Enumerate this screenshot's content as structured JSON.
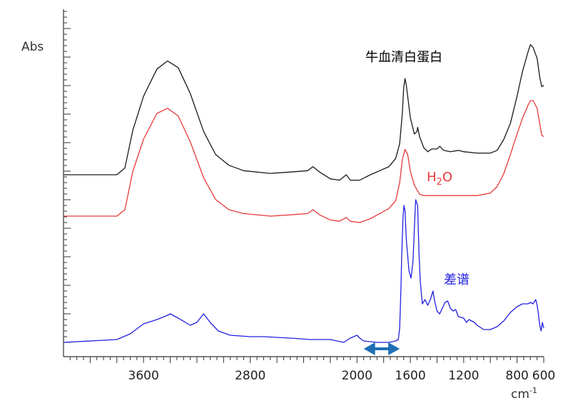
{
  "chart_data": {
    "type": "line",
    "title": "",
    "ylabel": "Abs",
    "xlabel": "cm",
    "xlabel_sup": "-1",
    "xlim": [
      4200,
      600
    ],
    "x_ticks": [
      3600,
      2800,
      2000,
      1600,
      1200,
      800,
      600
    ],
    "grid": false,
    "series": [
      {
        "name": "牛血清白蛋白",
        "color": "#1a1a1a",
        "baseline": 0,
        "points": [
          [
            4200,
            0
          ],
          [
            3800,
            0
          ],
          [
            3740,
            0.05
          ],
          [
            3680,
            0.33
          ],
          [
            3600,
            0.58
          ],
          [
            3500,
            0.78
          ],
          [
            3420,
            0.84
          ],
          [
            3340,
            0.79
          ],
          [
            3250,
            0.6
          ],
          [
            3150,
            0.32
          ],
          [
            3060,
            0.15
          ],
          [
            2960,
            0.07
          ],
          [
            2850,
            0.03
          ],
          [
            2650,
            0.01
          ],
          [
            2500,
            0.02
          ],
          [
            2370,
            0.03
          ],
          [
            2330,
            0.06
          ],
          [
            2280,
            0.02
          ],
          [
            2200,
            -0.03
          ],
          [
            2130,
            -0.04
          ],
          [
            2080,
            0
          ],
          [
            2050,
            -0.04
          ],
          [
            1980,
            -0.04
          ],
          [
            1900,
            0
          ],
          [
            1830,
            0.03
          ],
          [
            1760,
            0.06
          ],
          [
            1710,
            0.12
          ],
          [
            1680,
            0.23
          ],
          [
            1660,
            0.45
          ],
          [
            1650,
            0.64
          ],
          [
            1640,
            0.71
          ],
          [
            1630,
            0.66
          ],
          [
            1600,
            0.42
          ],
          [
            1570,
            0.3
          ],
          [
            1550,
            0.32
          ],
          [
            1545,
            0.35
          ],
          [
            1530,
            0.28
          ],
          [
            1500,
            0.2
          ],
          [
            1470,
            0.17
          ],
          [
            1440,
            0.19
          ],
          [
            1400,
            0.19
          ],
          [
            1380,
            0.21
          ],
          [
            1350,
            0.18
          ],
          [
            1300,
            0.17
          ],
          [
            1240,
            0.18
          ],
          [
            1200,
            0.17
          ],
          [
            1100,
            0.16
          ],
          [
            1000,
            0.16
          ],
          [
            950,
            0.18
          ],
          [
            900,
            0.26
          ],
          [
            850,
            0.38
          ],
          [
            800,
            0.58
          ],
          [
            760,
            0.76
          ],
          [
            720,
            0.9
          ],
          [
            700,
            0.96
          ],
          [
            680,
            0.94
          ],
          [
            650,
            0.86
          ],
          [
            630,
            0.72
          ],
          [
            615,
            0.65
          ],
          [
            600,
            0.66
          ]
        ]
      },
      {
        "name": "H2O",
        "label_main": "H",
        "label_sub": "2",
        "label_end": "O",
        "color": "#e83a3a",
        "baseline": 0,
        "points": [
          [
            4200,
            0
          ],
          [
            3800,
            0
          ],
          [
            3740,
            0.05
          ],
          [
            3680,
            0.35
          ],
          [
            3600,
            0.6
          ],
          [
            3500,
            0.8
          ],
          [
            3420,
            0.84
          ],
          [
            3340,
            0.78
          ],
          [
            3250,
            0.58
          ],
          [
            3150,
            0.3
          ],
          [
            3060,
            0.13
          ],
          [
            2960,
            0.05
          ],
          [
            2850,
            0.02
          ],
          [
            2650,
            0
          ],
          [
            2500,
            0.01
          ],
          [
            2370,
            0.02
          ],
          [
            2330,
            0.05
          ],
          [
            2280,
            0.01
          ],
          [
            2200,
            -0.03
          ],
          [
            2130,
            -0.04
          ],
          [
            2080,
            -0.01
          ],
          [
            2050,
            -0.04
          ],
          [
            1980,
            -0.05
          ],
          [
            1900,
            -0.02
          ],
          [
            1830,
            0.02
          ],
          [
            1760,
            0.06
          ],
          [
            1710,
            0.12
          ],
          [
            1680,
            0.26
          ],
          [
            1660,
            0.44
          ],
          [
            1640,
            0.52
          ],
          [
            1620,
            0.48
          ],
          [
            1600,
            0.35
          ],
          [
            1570,
            0.24
          ],
          [
            1530,
            0.17
          ],
          [
            1500,
            0.16
          ],
          [
            1300,
            0.16
          ],
          [
            1100,
            0.16
          ],
          [
            1000,
            0.18
          ],
          [
            950,
            0.23
          ],
          [
            900,
            0.33
          ],
          [
            850,
            0.48
          ],
          [
            800,
            0.64
          ],
          [
            760,
            0.76
          ],
          [
            720,
            0.86
          ],
          [
            700,
            0.9
          ],
          [
            680,
            0.9
          ],
          [
            650,
            0.84
          ],
          [
            630,
            0.72
          ],
          [
            615,
            0.63
          ],
          [
            600,
            0.62
          ]
        ]
      },
      {
        "name": "差谱",
        "color": "#2020e0",
        "baseline": 0,
        "points": [
          [
            4200,
            0
          ],
          [
            3800,
            0.02
          ],
          [
            3700,
            0.06
          ],
          [
            3600,
            0.13
          ],
          [
            3500,
            0.16
          ],
          [
            3420,
            0.19
          ],
          [
            3400,
            0.2
          ],
          [
            3340,
            0.17
          ],
          [
            3250,
            0.12
          ],
          [
            3200,
            0.14
          ],
          [
            3150,
            0.2
          ],
          [
            3100,
            0.14
          ],
          [
            3040,
            0.08
          ],
          [
            2950,
            0.05
          ],
          [
            2800,
            0.04
          ],
          [
            2700,
            0.04
          ],
          [
            2500,
            0.03
          ],
          [
            2350,
            0.02
          ],
          [
            2200,
            0.02
          ],
          [
            2100,
            0
          ],
          [
            2050,
            0.03
          ],
          [
            2000,
            0.05
          ],
          [
            1980,
            0.03
          ],
          [
            1950,
            0.01
          ],
          [
            1850,
            0
          ],
          [
            1760,
            0
          ],
          [
            1710,
            0.01
          ],
          [
            1690,
            0.02
          ],
          [
            1680,
            0.1
          ],
          [
            1670,
            0.4
          ],
          [
            1665,
            0.6
          ],
          [
            1655,
            0.88
          ],
          [
            1648,
            0.96
          ],
          [
            1640,
            0.92
          ],
          [
            1630,
            0.72
          ],
          [
            1610,
            0.5
          ],
          [
            1595,
            0.45
          ],
          [
            1580,
            0.57
          ],
          [
            1570,
            0.8
          ],
          [
            1560,
            1.0
          ],
          [
            1545,
            0.96
          ],
          [
            1535,
            0.62
          ],
          [
            1525,
            0.42
          ],
          [
            1510,
            0.27
          ],
          [
            1490,
            0.3
          ],
          [
            1470,
            0.26
          ],
          [
            1450,
            0.3
          ],
          [
            1430,
            0.36
          ],
          [
            1420,
            0.3
          ],
          [
            1400,
            0.22
          ],
          [
            1380,
            0.2
          ],
          [
            1360,
            0.24
          ],
          [
            1340,
            0.28
          ],
          [
            1320,
            0.29
          ],
          [
            1300,
            0.24
          ],
          [
            1280,
            0.22
          ],
          [
            1260,
            0.23
          ],
          [
            1240,
            0.18
          ],
          [
            1200,
            0.17
          ],
          [
            1180,
            0.14
          ],
          [
            1160,
            0.16
          ],
          [
            1120,
            0.14
          ],
          [
            1100,
            0.12
          ],
          [
            1050,
            0.09
          ],
          [
            1000,
            0.09
          ],
          [
            950,
            0.11
          ],
          [
            900,
            0.15
          ],
          [
            850,
            0.21
          ],
          [
            800,
            0.25
          ],
          [
            760,
            0.27
          ],
          [
            720,
            0.27
          ],
          [
            700,
            0.28
          ],
          [
            680,
            0.27
          ],
          [
            660,
            0.3
          ],
          [
            650,
            0.26
          ],
          [
            640,
            0.2
          ],
          [
            630,
            0.12
          ],
          [
            620,
            0.08
          ],
          [
            610,
            0.14
          ],
          [
            600,
            0.1
          ]
        ]
      }
    ],
    "annotations": [
      {
        "type": "double-arrow",
        "color": "#1f6fb5",
        "x_from": 1950,
        "x_to": 1680
      }
    ]
  }
}
